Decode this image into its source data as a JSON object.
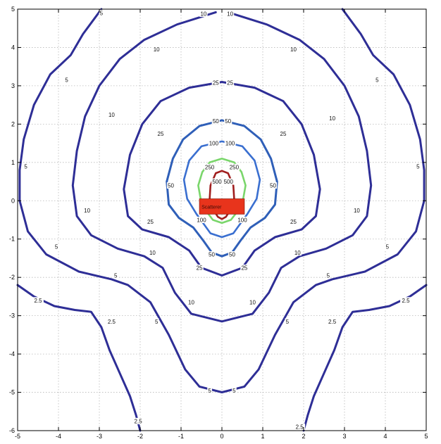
{
  "chart_data": {
    "type": "contour",
    "title": "",
    "xlabel": "",
    "ylabel": "",
    "xlim": [
      -5,
      5
    ],
    "ylim": [
      -6,
      5
    ],
    "x_ticks": [
      -5,
      -4,
      -3,
      -2,
      -1,
      0,
      1,
      2,
      3,
      4,
      5
    ],
    "y_ticks": [
      -6,
      -5,
      -4,
      -3,
      -2,
      -1,
      0,
      1,
      2,
      3,
      4,
      5
    ],
    "grid": true,
    "colors": {
      "outer": "#2e2e96",
      "mid": "#2f5fb8",
      "level_100": "#3a6fd0",
      "level_250": "#7ad66b",
      "level_500": "#a01e1e",
      "scatterer_fill": "#e8341c"
    },
    "scatterer": {
      "label": "Scatterer",
      "x_range": [
        -0.55,
        0.55
      ],
      "y_range": [
        -0.35,
        0.05
      ]
    },
    "contours": [
      {
        "level": "2.5",
        "color": "outer",
        "segments": [
          [
            [
              -5,
              -2.2
            ],
            [
              -4.6,
              -2.5
            ],
            [
              -4.1,
              -2.75
            ],
            [
              -3.6,
              -2.85
            ],
            [
              -3.2,
              -2.9
            ],
            [
              -2.95,
              -3.3
            ],
            [
              -2.75,
              -3.9
            ],
            [
              -2.5,
              -4.5
            ],
            [
              -2.25,
              -5.1
            ],
            [
              -2.1,
              -5.6
            ],
            [
              -2,
              -6
            ]
          ],
          [
            [
              5,
              -2.2
            ],
            [
              4.6,
              -2.5
            ],
            [
              4.1,
              -2.75
            ],
            [
              3.6,
              -2.85
            ],
            [
              3.2,
              -2.9
            ],
            [
              2.95,
              -3.3
            ],
            [
              2.75,
              -3.9
            ],
            [
              2.5,
              -4.5
            ],
            [
              2.25,
              -5.1
            ],
            [
              2.1,
              -5.6
            ],
            [
              2,
              -6
            ]
          ]
        ],
        "labels": [
          {
            "x": -4.5,
            "y": -2.6,
            "text": "2.5"
          },
          {
            "x": -2.7,
            "y": -3.15,
            "text": "2.5"
          },
          {
            "x": -2.05,
            "y": -5.75,
            "text": "2.5"
          },
          {
            "x": 2.7,
            "y": -3.15,
            "text": "2.5"
          },
          {
            "x": 4.5,
            "y": -2.6,
            "text": "2.5"
          },
          {
            "x": 1.9,
            "y": -5.9,
            "text": "2.5"
          }
        ]
      },
      {
        "level": "5",
        "color": "outer",
        "segments": [
          [
            [
              -2.95,
              5
            ],
            [
              -3.4,
              4.35
            ],
            [
              -3.7,
              3.8
            ],
            [
              -4.2,
              3.3
            ],
            [
              -4.6,
              2.5
            ],
            [
              -4.85,
              1.6
            ],
            [
              -4.95,
              0.8
            ],
            [
              -4.95,
              0
            ],
            [
              -4.75,
              -0.8
            ],
            [
              -4.3,
              -1.4
            ],
            [
              -3.5,
              -1.85
            ],
            [
              -2.7,
              -2.05
            ],
            [
              -2.3,
              -2.2
            ],
            [
              -1.75,
              -2.65
            ],
            [
              -1.3,
              -3.5
            ],
            [
              -0.9,
              -4.4
            ],
            [
              -0.55,
              -4.85
            ],
            [
              0,
              -5
            ],
            [
              0.55,
              -4.85
            ],
            [
              0.9,
              -4.4
            ],
            [
              1.3,
              -3.5
            ],
            [
              1.75,
              -2.65
            ],
            [
              2.3,
              -2.2
            ],
            [
              2.7,
              -2.05
            ],
            [
              3.5,
              -1.85
            ],
            [
              4.3,
              -1.4
            ],
            [
              4.75,
              -0.8
            ],
            [
              4.95,
              0
            ],
            [
              4.95,
              0.8
            ],
            [
              4.85,
              1.6
            ],
            [
              4.6,
              2.5
            ],
            [
              4.2,
              3.3
            ],
            [
              3.7,
              3.8
            ],
            [
              3.4,
              4.35
            ],
            [
              2.95,
              5
            ]
          ]
        ],
        "labels": [
          {
            "x": -3.8,
            "y": 3.15,
            "text": "5"
          },
          {
            "x": -4.8,
            "y": 0.9,
            "text": "5"
          },
          {
            "x": -4.05,
            "y": -1.2,
            "text": "5"
          },
          {
            "x": -2.6,
            "y": -1.95,
            "text": "5"
          },
          {
            "x": -1.6,
            "y": -3.15,
            "text": "5"
          },
          {
            "x": -0.3,
            "y": -4.95,
            "text": "5"
          },
          {
            "x": 0.3,
            "y": -4.95,
            "text": "5"
          },
          {
            "x": 1.6,
            "y": -3.15,
            "text": "5"
          },
          {
            "x": 2.6,
            "y": -1.95,
            "text": "5"
          },
          {
            "x": 4.05,
            "y": -1.2,
            "text": "5"
          },
          {
            "x": 4.8,
            "y": 0.9,
            "text": "5"
          },
          {
            "x": 3.8,
            "y": 3.15,
            "text": "5"
          },
          {
            "x": -2.95,
            "y": 4.9,
            "text": "5"
          }
        ]
      },
      {
        "level": "10",
        "color": "outer",
        "segments": [
          [
            [
              -0.15,
              4.92
            ],
            [
              -1.1,
              4.6
            ],
            [
              -1.9,
              4.2
            ],
            [
              -2.5,
              3.7
            ],
            [
              -3,
              3
            ],
            [
              -3.35,
              2.2
            ],
            [
              -3.55,
              1.3
            ],
            [
              -3.65,
              0.4
            ],
            [
              -3.55,
              -0.4
            ],
            [
              -3.2,
              -0.9
            ],
            [
              -2.55,
              -1.25
            ],
            [
              -1.9,
              -1.45
            ],
            [
              -1.45,
              -1.75
            ],
            [
              -1.15,
              -2.4
            ],
            [
              -0.75,
              -2.95
            ],
            [
              0,
              -3.15
            ],
            [
              0.75,
              -2.95
            ],
            [
              1.15,
              -2.4
            ],
            [
              1.45,
              -1.75
            ],
            [
              1.9,
              -1.45
            ],
            [
              2.55,
              -1.25
            ],
            [
              3.2,
              -0.9
            ],
            [
              3.55,
              -0.4
            ],
            [
              3.65,
              0.4
            ],
            [
              3.55,
              1.3
            ],
            [
              3.35,
              2.2
            ],
            [
              3,
              3
            ],
            [
              2.5,
              3.7
            ],
            [
              1.9,
              4.2
            ],
            [
              1.1,
              4.6
            ],
            [
              0.15,
              4.92
            ]
          ]
        ],
        "labels": [
          {
            "x": -0.45,
            "y": 4.88,
            "text": "10"
          },
          {
            "x": 0.2,
            "y": 4.88,
            "text": "10"
          },
          {
            "x": -1.6,
            "y": 3.95,
            "text": "10"
          },
          {
            "x": 1.75,
            "y": 3.95,
            "text": "10"
          },
          {
            "x": -2.7,
            "y": 2.25,
            "text": "10"
          },
          {
            "x": 2.7,
            "y": 2.15,
            "text": "10"
          },
          {
            "x": -3.3,
            "y": -0.25,
            "text": "10"
          },
          {
            "x": 3.3,
            "y": -0.25,
            "text": "10"
          },
          {
            "x": -1.7,
            "y": -1.35,
            "text": "10"
          },
          {
            "x": 1.85,
            "y": -1.35,
            "text": "10"
          },
          {
            "x": -0.75,
            "y": -2.65,
            "text": "10"
          },
          {
            "x": 0.75,
            "y": -2.65,
            "text": "10"
          }
        ]
      },
      {
        "level": "25",
        "color": "outer",
        "segments": [
          [
            [
              0,
              3.1
            ],
            [
              -0.8,
              2.95
            ],
            [
              -1.5,
              2.6
            ],
            [
              -1.95,
              2
            ],
            [
              -2.25,
              1.2
            ],
            [
              -2.4,
              0.3
            ],
            [
              -2.3,
              -0.4
            ],
            [
              -1.95,
              -0.75
            ],
            [
              -1.3,
              -0.95
            ],
            [
              -0.8,
              -1.3
            ],
            [
              -0.5,
              -1.75
            ],
            [
              0,
              -1.95
            ],
            [
              0.5,
              -1.75
            ],
            [
              0.8,
              -1.3
            ],
            [
              1.3,
              -0.95
            ],
            [
              1.95,
              -0.75
            ],
            [
              2.3,
              -0.4
            ],
            [
              2.4,
              0.3
            ],
            [
              2.25,
              1.2
            ],
            [
              1.95,
              2
            ],
            [
              1.5,
              2.6
            ],
            [
              0.8,
              2.95
            ],
            [
              0,
              3.1
            ]
          ]
        ],
        "labels": [
          {
            "x": -0.15,
            "y": 3.08,
            "text": "25"
          },
          {
            "x": 0.2,
            "y": 3.08,
            "text": "25"
          },
          {
            "x": -1.5,
            "y": 1.75,
            "text": "25"
          },
          {
            "x": 1.5,
            "y": 1.75,
            "text": "25"
          },
          {
            "x": -1.75,
            "y": -0.55,
            "text": "25"
          },
          {
            "x": 1.75,
            "y": -0.55,
            "text": "25"
          },
          {
            "x": -0.55,
            "y": -1.75,
            "text": "25"
          },
          {
            "x": 0.55,
            "y": -1.75,
            "text": "25"
          }
        ]
      },
      {
        "level": "50",
        "color": "mid",
        "segments": [
          [
            [
              0,
              2.1
            ],
            [
              -0.55,
              1.95
            ],
            [
              -0.95,
              1.6
            ],
            [
              -1.2,
              1.1
            ],
            [
              -1.35,
              0.5
            ],
            [
              -1.3,
              -0.1
            ],
            [
              -1.05,
              -0.45
            ],
            [
              -0.7,
              -0.7
            ],
            [
              -0.45,
              -1.05
            ],
            [
              -0.25,
              -1.35
            ],
            [
              0,
              -1.45
            ],
            [
              0.25,
              -1.35
            ],
            [
              0.45,
              -1.05
            ],
            [
              0.7,
              -0.7
            ],
            [
              1.05,
              -0.45
            ],
            [
              1.3,
              -0.1
            ],
            [
              1.35,
              0.5
            ],
            [
              1.2,
              1.1
            ],
            [
              0.95,
              1.6
            ],
            [
              0.55,
              1.95
            ],
            [
              0,
              2.1
            ]
          ]
        ],
        "labels": [
          {
            "x": -0.15,
            "y": 2.08,
            "text": "50"
          },
          {
            "x": 0.15,
            "y": 2.08,
            "text": "50"
          },
          {
            "x": -1.25,
            "y": 0.4,
            "text": "50"
          },
          {
            "x": 1.25,
            "y": 0.4,
            "text": "50"
          },
          {
            "x": -0.25,
            "y": -1.4,
            "text": "50"
          },
          {
            "x": 0.25,
            "y": -1.4,
            "text": "50"
          }
        ]
      },
      {
        "level": "100",
        "color": "level_100",
        "segments": [
          [
            [
              0,
              1.55
            ],
            [
              -0.5,
              1.42
            ],
            [
              -0.8,
              1.05
            ],
            [
              -0.93,
              0.55
            ],
            [
              -0.85,
              0.05
            ],
            [
              -0.62,
              -0.35
            ],
            [
              -0.45,
              -0.6
            ],
            [
              -0.28,
              -0.85
            ],
            [
              0,
              -0.95
            ],
            [
              0.28,
              -0.85
            ],
            [
              0.45,
              -0.6
            ],
            [
              0.62,
              -0.35
            ],
            [
              0.85,
              0.05
            ],
            [
              0.93,
              0.55
            ],
            [
              0.8,
              1.05
            ],
            [
              0.5,
              1.42
            ],
            [
              0,
              1.55
            ]
          ]
        ],
        "labels": [
          {
            "x": -0.2,
            "y": 1.5,
            "text": "100"
          },
          {
            "x": 0.2,
            "y": 1.5,
            "text": "100"
          },
          {
            "x": -0.5,
            "y": -0.5,
            "text": "100"
          },
          {
            "x": 0.5,
            "y": -0.5,
            "text": "100"
          }
        ]
      },
      {
        "level": "250",
        "color": "level_250",
        "segments": [
          [
            [
              0,
              1.1
            ],
            [
              -0.3,
              1
            ],
            [
              -0.48,
              0.75
            ],
            [
              -0.58,
              0.4
            ],
            [
              -0.52,
              0.05
            ],
            [
              -0.4,
              -0.25
            ],
            [
              -0.22,
              -0.5
            ],
            [
              0,
              -0.58
            ],
            [
              0.22,
              -0.5
            ],
            [
              0.4,
              -0.25
            ],
            [
              0.52,
              0.05
            ],
            [
              0.58,
              0.4
            ],
            [
              0.48,
              0.75
            ],
            [
              0.3,
              1
            ],
            [
              0,
              1.1
            ]
          ]
        ],
        "labels": [
          {
            "x": -0.3,
            "y": 0.88,
            "text": "250"
          },
          {
            "x": 0.3,
            "y": 0.88,
            "text": "250"
          }
        ]
      },
      {
        "level": "500",
        "color": "level_500",
        "segments": [
          [
            [
              0,
              0.78
            ],
            [
              -0.15,
              0.72
            ],
            [
              -0.28,
              0.4
            ],
            [
              -0.3,
              0.05
            ],
            [
              -0.2,
              -0.25
            ],
            [
              -0.1,
              -0.42
            ],
            [
              0,
              -0.48
            ],
            [
              0.1,
              -0.42
            ],
            [
              0.2,
              -0.25
            ],
            [
              0.3,
              0.05
            ],
            [
              0.28,
              0.4
            ],
            [
              0.15,
              0.72
            ],
            [
              0,
              0.78
            ]
          ]
        ],
        "labels": [
          {
            "x": -0.12,
            "y": 0.5,
            "text": "500"
          },
          {
            "x": 0.16,
            "y": 0.5,
            "text": "500"
          }
        ]
      }
    ]
  }
}
